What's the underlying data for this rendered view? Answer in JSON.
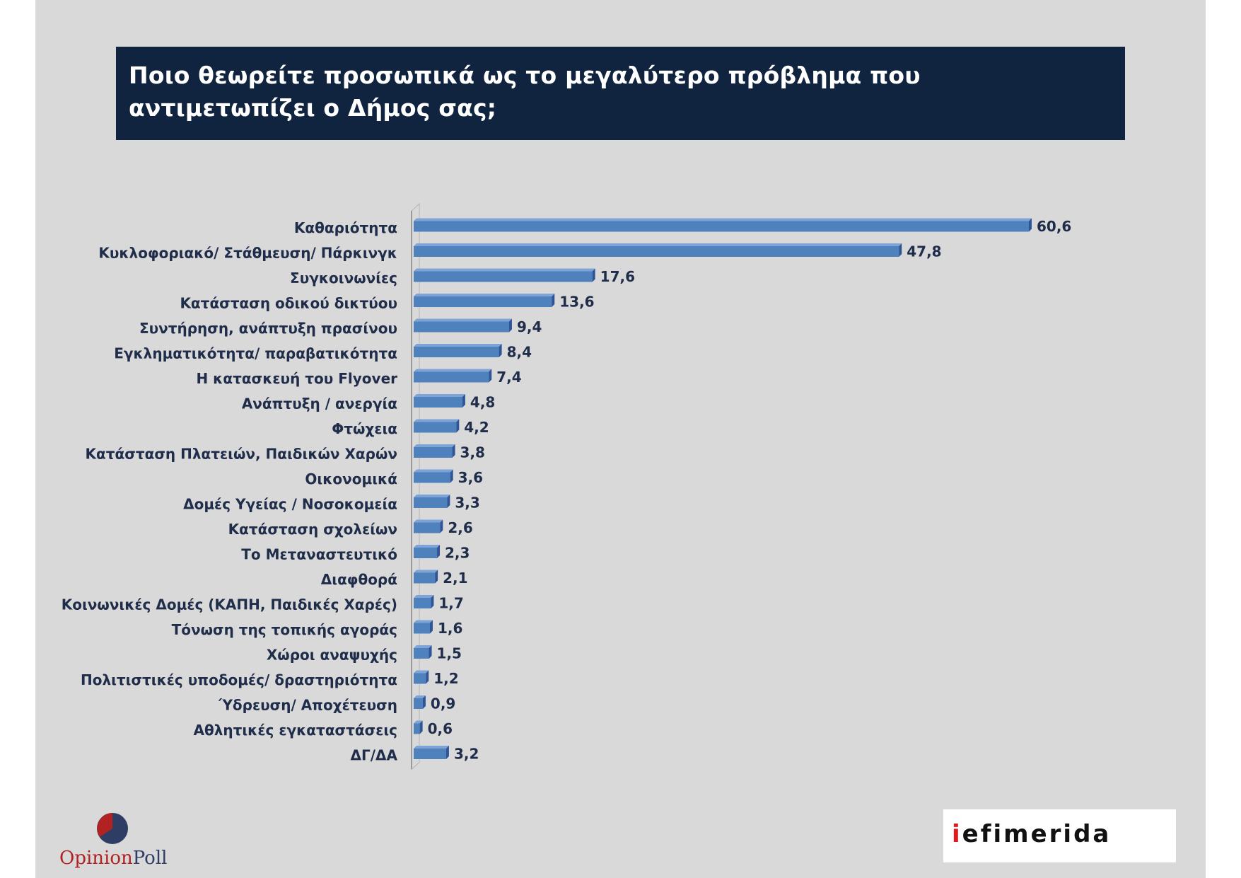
{
  "title": "Ποιο θεωρείτε προσωπικά ως το μεγαλύτερο πρόβλημα που αντιμετωπίζει ο Δήμος σας;",
  "colors": {
    "bar": "#4f81bd",
    "bar_dark": "#2f5597",
    "title_bg": "#10233f"
  },
  "chart_data": {
    "type": "bar",
    "orientation": "horizontal",
    "title": "Ποιο θεωρείτε προσωπικά ως το μεγαλύτερο πρόβλημα που αντιμετωπίζει ο Δήμος σας;",
    "categories": [
      "Καθαριότητα",
      "Κυκλοφοριακό/ Στάθμευση/ Πάρκινγκ",
      "Συγκοινωνίες",
      "Κατάσταση οδικού δικτύου",
      "Συντήρηση, ανάπτυξη πρασίνου",
      "Εγκληματικότητα/ παραβατικότητα",
      "Η κατασκευή του Flyover",
      "Ανάπτυξη / ανεργία",
      "Φτώχεια",
      "Κατάσταση Πλατειών, Παιδικών Χαρών",
      "Οικονομικά",
      "Δομές Υγείας / Νοσοκομεία",
      "Κατάσταση σχολείων",
      "Το Μεταναστευτικό",
      "Διαφθορά",
      "Κοινωνικές Δομές (ΚΑΠΗ, Παιδικές Χαρές)",
      "Τόνωση της τοπικής αγοράς",
      "Χώροι αναψυχής",
      "Πολιτιστικές υποδομές/ δραστηριότητα",
      "Ύδρευση/ Αποχέτευση",
      "Αθλητικές εγκαταστάσεις",
      "ΔΓ/ΔΑ"
    ],
    "values": [
      60.6,
      47.8,
      17.6,
      13.6,
      9.4,
      8.4,
      7.4,
      4.8,
      4.2,
      3.8,
      3.6,
      3.3,
      2.6,
      2.3,
      2.1,
      1.7,
      1.6,
      1.5,
      1.2,
      0.9,
      0.6,
      3.2
    ],
    "data_labels": [
      "60,6",
      "47,8",
      "17,6",
      "13,6",
      "9,4",
      "8,4",
      "7,4",
      "4,8",
      "4,2",
      "3,8",
      "3,6",
      "3,3",
      "2,6",
      "2,3",
      "2,1",
      "1,7",
      "1,6",
      "1,5",
      "1,2",
      "0,9",
      "0,6",
      "3,2"
    ],
    "xlim": [
      0,
      70
    ],
    "grid": false,
    "legend": "none"
  },
  "logos": {
    "opinionpoll": {
      "part1": "Opinion",
      "part2": "Poll"
    },
    "iefimerida": {
      "part1": "i",
      "part2": "efimerida"
    }
  }
}
